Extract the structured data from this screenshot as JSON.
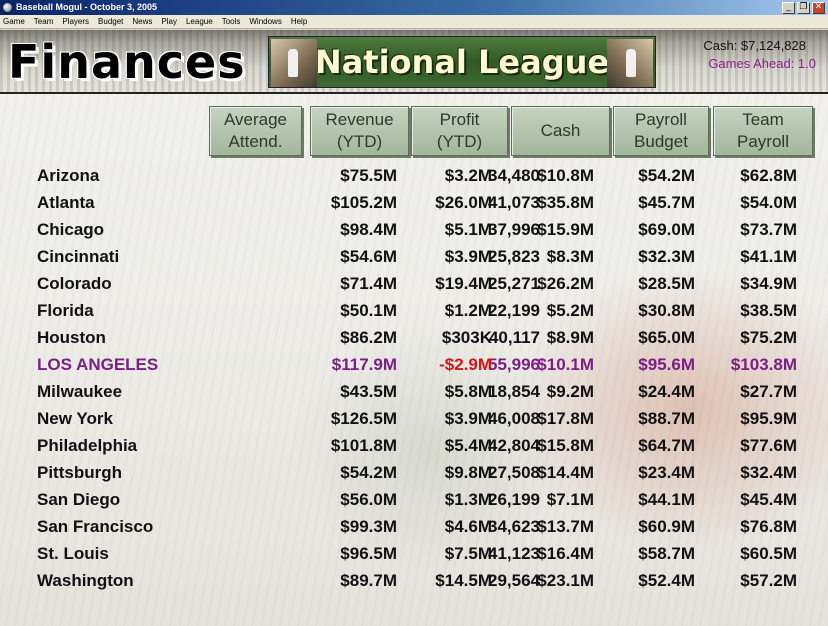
{
  "window": {
    "title": "Baseball Mogul - October 3, 2005"
  },
  "menu": [
    "Game",
    "Team",
    "Players",
    "Budget",
    "News",
    "Play",
    "League",
    "Tools",
    "Windows",
    "Help"
  ],
  "header": {
    "page_title": "Finances",
    "league": "National League",
    "cash": "Cash: $7,124,828",
    "games_ahead": "Games Ahead: 1.0"
  },
  "table": {
    "columns": [
      "Average\nAttend.",
      "Revenue\n(YTD)",
      "Profit\n(YTD)",
      "Cash",
      "Payroll\nBudget",
      "Team\nPayroll"
    ],
    "rows": [
      {
        "team": "Arizona",
        "attend": "34,480",
        "revenue": "$75.5M",
        "profit": "$3.2M",
        "cash": "$10.8M",
        "budget": "$54.2M",
        "payroll": "$62.8M"
      },
      {
        "team": "Atlanta",
        "attend": "41,073",
        "revenue": "$105.2M",
        "profit": "$26.0M",
        "cash": "$35.8M",
        "budget": "$45.7M",
        "payroll": "$54.0M"
      },
      {
        "team": "Chicago",
        "attend": "37,996",
        "revenue": "$98.4M",
        "profit": "$5.1M",
        "cash": "$15.9M",
        "budget": "$69.0M",
        "payroll": "$73.7M"
      },
      {
        "team": "Cincinnati",
        "attend": "25,823",
        "revenue": "$54.6M",
        "profit": "$3.9M",
        "cash": "$8.3M",
        "budget": "$32.3M",
        "payroll": "$41.1M"
      },
      {
        "team": "Colorado",
        "attend": "25,271",
        "revenue": "$71.4M",
        "profit": "$19.4M",
        "cash": "$26.2M",
        "budget": "$28.5M",
        "payroll": "$34.9M"
      },
      {
        "team": "Florida",
        "attend": "22,199",
        "revenue": "$50.1M",
        "profit": "$1.2M",
        "cash": "$5.2M",
        "budget": "$30.8M",
        "payroll": "$38.5M"
      },
      {
        "team": "Houston",
        "attend": "40,117",
        "revenue": "$86.2M",
        "profit": "$303K",
        "cash": "$8.9M",
        "budget": "$65.0M",
        "payroll": "$75.2M"
      },
      {
        "team": "LOS ANGELES",
        "attend": "55,996",
        "revenue": "$117.9M",
        "profit": "-$2.9M",
        "cash": "$10.1M",
        "budget": "$95.6M",
        "payroll": "$103.8M",
        "highlight": true
      },
      {
        "team": "Milwaukee",
        "attend": "18,854",
        "revenue": "$43.5M",
        "profit": "$5.8M",
        "cash": "$9.2M",
        "budget": "$24.4M",
        "payroll": "$27.7M"
      },
      {
        "team": "New York",
        "attend": "46,008",
        "revenue": "$126.5M",
        "profit": "$3.9M",
        "cash": "$17.8M",
        "budget": "$88.7M",
        "payroll": "$95.9M"
      },
      {
        "team": "Philadelphia",
        "attend": "42,804",
        "revenue": "$101.8M",
        "profit": "$5.4M",
        "cash": "$15.8M",
        "budget": "$64.7M",
        "payroll": "$77.6M"
      },
      {
        "team": "Pittsburgh",
        "attend": "27,508",
        "revenue": "$54.2M",
        "profit": "$9.8M",
        "cash": "$14.4M",
        "budget": "$23.4M",
        "payroll": "$32.4M"
      },
      {
        "team": "San Diego",
        "attend": "26,199",
        "revenue": "$56.0M",
        "profit": "$1.3M",
        "cash": "$7.1M",
        "budget": "$44.1M",
        "payroll": "$45.4M"
      },
      {
        "team": "San Francisco",
        "attend": "34,623",
        "revenue": "$99.3M",
        "profit": "$4.6M",
        "cash": "$13.7M",
        "budget": "$60.9M",
        "payroll": "$76.8M"
      },
      {
        "team": "St. Louis",
        "attend": "41,123",
        "revenue": "$96.5M",
        "profit": "$7.5M",
        "cash": "$16.4M",
        "budget": "$58.7M",
        "payroll": "$60.5M"
      },
      {
        "team": "Washington",
        "attend": "29,564",
        "revenue": "$89.7M",
        "profit": "$14.5M",
        "cash": "$23.1M",
        "budget": "$52.4M",
        "payroll": "$57.2M"
      }
    ]
  }
}
